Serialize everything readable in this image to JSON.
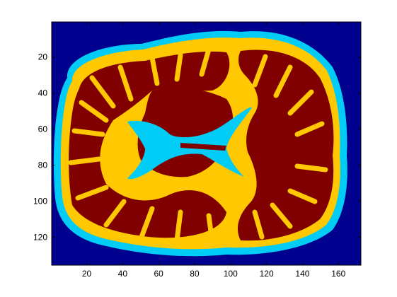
{
  "figure": {
    "colors": {
      "background": "#00008F",
      "csf": "#00CCF5",
      "gray_matter": "#FFC800",
      "white_matter": "#800000",
      "axes_line": "#000000",
      "page": "#FFFFFF"
    }
  },
  "chart_data": {
    "type": "heatmap",
    "title": "",
    "xlabel": "",
    "ylabel": "",
    "xlim": [
      0.5,
      172.5
    ],
    "ylim": [
      135.5,
      0.5
    ],
    "x_ticks": [
      20,
      40,
      60,
      80,
      100,
      120,
      140,
      160
    ],
    "y_ticks": [
      20,
      40,
      60,
      80,
      100,
      120
    ],
    "x_tick_labels": [
      "20",
      "40",
      "60",
      "80",
      "100",
      "120",
      "140",
      "160"
    ],
    "y_tick_labels": [
      "20",
      "40",
      "60",
      "80",
      "100",
      "120"
    ],
    "grid": false,
    "legend": "none",
    "colormap_levels": [
      {
        "level": 0,
        "color": "#00008F"
      },
      {
        "level": 1,
        "color": "#00CCF5"
      },
      {
        "level": 2,
        "color": "#FFC800"
      },
      {
        "level": 3,
        "color": "#800000"
      }
    ]
  }
}
